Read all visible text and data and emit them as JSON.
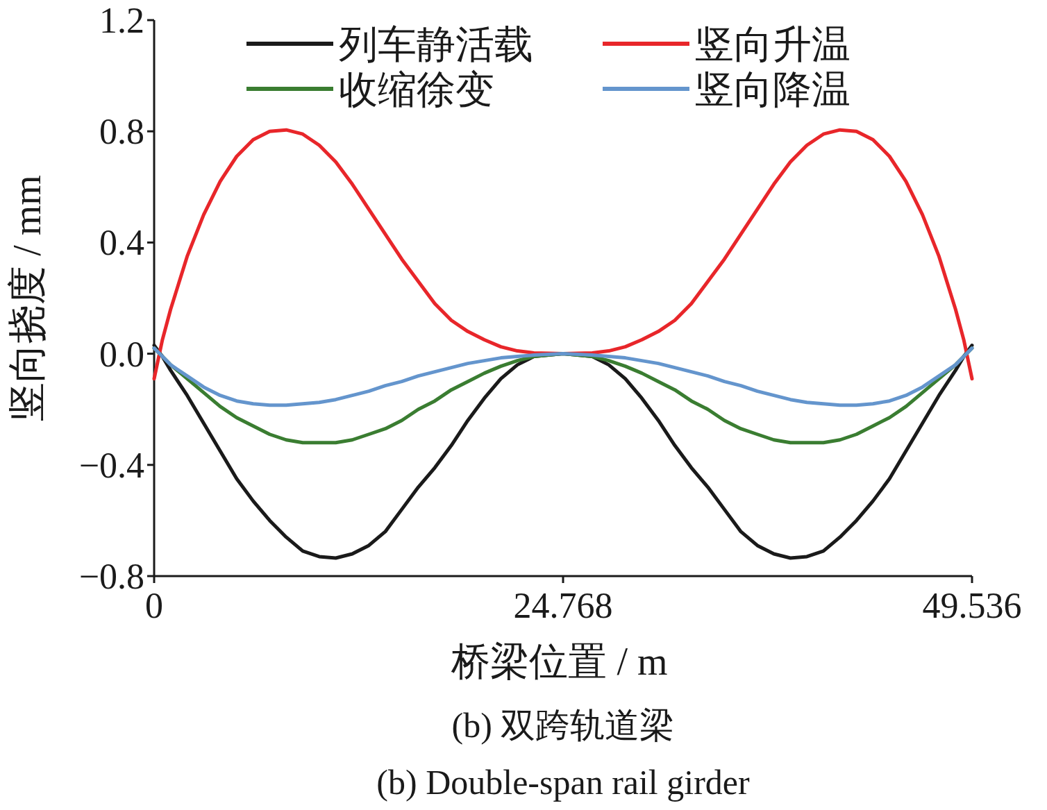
{
  "chart_data": {
    "type": "line",
    "xlabel": "桥梁位置 / m",
    "ylabel": "竖向挠度 / mm",
    "annotations": [
      "(b) 双跨轨道梁",
      "(b) Double-span rail girder"
    ],
    "x": [
      0,
      0.5,
      1,
      2,
      3,
      4,
      5,
      6,
      7,
      8,
      9,
      10,
      11,
      12,
      13,
      14,
      15,
      16,
      17,
      18,
      19,
      20,
      21,
      22,
      23,
      24.768,
      26.536,
      27.536,
      28.536,
      29.536,
      30.536,
      31.536,
      32.536,
      33.536,
      34.536,
      35.536,
      36.536,
      37.536,
      38.536,
      39.536,
      40.536,
      41.536,
      42.536,
      43.536,
      44.536,
      45.536,
      46.536,
      47.536,
      48.536,
      49.036,
      49.536
    ],
    "series": [
      {
        "name": "列车静活载",
        "color": "#1a1a1a",
        "values": [
          0.03,
          -0.01,
          -0.06,
          -0.15,
          -0.25,
          -0.35,
          -0.45,
          -0.53,
          -0.6,
          -0.66,
          -0.71,
          -0.73,
          -0.735,
          -0.72,
          -0.69,
          -0.64,
          -0.56,
          -0.48,
          -0.41,
          -0.33,
          -0.24,
          -0.16,
          -0.09,
          -0.04,
          -0.01,
          0,
          -0.01,
          -0.04,
          -0.09,
          -0.16,
          -0.24,
          -0.33,
          -0.41,
          -0.48,
          -0.56,
          -0.64,
          -0.69,
          -0.72,
          -0.735,
          -0.73,
          -0.71,
          -0.66,
          -0.6,
          -0.53,
          -0.45,
          -0.35,
          -0.25,
          -0.15,
          -0.06,
          -0.01,
          0.03
        ]
      },
      {
        "name": "竖向升温",
        "color": "#e8262a",
        "values": [
          -0.09,
          0.05,
          0.16,
          0.35,
          0.5,
          0.62,
          0.71,
          0.77,
          0.8,
          0.805,
          0.79,
          0.75,
          0.69,
          0.61,
          0.52,
          0.43,
          0.34,
          0.26,
          0.18,
          0.12,
          0.08,
          0.05,
          0.025,
          0.01,
          0.003,
          0,
          0.003,
          0.01,
          0.025,
          0.05,
          0.08,
          0.12,
          0.18,
          0.26,
          0.34,
          0.43,
          0.52,
          0.61,
          0.69,
          0.75,
          0.79,
          0.805,
          0.8,
          0.77,
          0.71,
          0.62,
          0.5,
          0.35,
          0.16,
          0.05,
          -0.09
        ]
      },
      {
        "name": "收缩徐变",
        "color": "#3a7d31",
        "values": [
          0.02,
          -0.01,
          -0.04,
          -0.09,
          -0.14,
          -0.19,
          -0.23,
          -0.26,
          -0.29,
          -0.31,
          -0.32,
          -0.32,
          -0.32,
          -0.31,
          -0.29,
          -0.27,
          -0.24,
          -0.2,
          -0.17,
          -0.13,
          -0.1,
          -0.07,
          -0.045,
          -0.025,
          -0.01,
          0,
          -0.01,
          -0.025,
          -0.045,
          -0.07,
          -0.1,
          -0.13,
          -0.17,
          -0.2,
          -0.24,
          -0.27,
          -0.29,
          -0.31,
          -0.32,
          -0.32,
          -0.32,
          -0.31,
          -0.29,
          -0.26,
          -0.23,
          -0.19,
          -0.14,
          -0.09,
          -0.04,
          -0.01,
          0.02
        ]
      },
      {
        "name": "竖向降温",
        "color": "#6495cd",
        "values": [
          0.02,
          -0.01,
          -0.04,
          -0.08,
          -0.12,
          -0.15,
          -0.17,
          -0.18,
          -0.185,
          -0.185,
          -0.18,
          -0.175,
          -0.165,
          -0.15,
          -0.135,
          -0.115,
          -0.1,
          -0.08,
          -0.065,
          -0.05,
          -0.035,
          -0.025,
          -0.015,
          -0.01,
          -0.005,
          0,
          -0.005,
          -0.01,
          -0.015,
          -0.025,
          -0.035,
          -0.05,
          -0.065,
          -0.08,
          -0.1,
          -0.115,
          -0.135,
          -0.15,
          -0.165,
          -0.175,
          -0.18,
          -0.185,
          -0.185,
          -0.18,
          -0.17,
          -0.15,
          -0.12,
          -0.08,
          -0.04,
          -0.01,
          0.02
        ]
      }
    ],
    "xlim": [
      0,
      49.536
    ],
    "xticks": [
      0,
      24.768,
      49.536
    ],
    "ylim": [
      -0.8,
      1.2
    ],
    "yticks": [
      {
        "value": -0.8,
        "label": "−0.8"
      },
      {
        "value": -0.4,
        "label": "−0.4"
      },
      {
        "value": 0,
        "label": "0.0"
      },
      0.4,
      0.8,
      1.2
    ],
    "grid": false,
    "legend": "top",
    "marker": "none",
    "line_style": "solid"
  }
}
